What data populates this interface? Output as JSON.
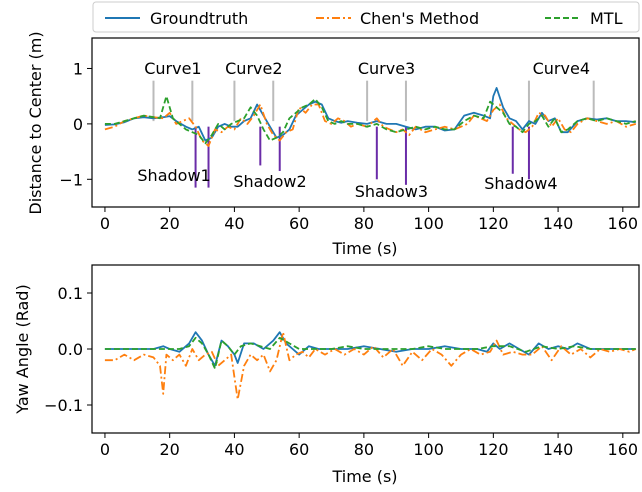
{
  "chart_data": [
    {
      "type": "line",
      "xlabel": "Time (s)",
      "ylabel": "Distance to Center (m)",
      "xlim": [
        -4,
        165
      ],
      "ylim": [
        -1.5,
        1.55
      ],
      "xticks": [
        0,
        20,
        40,
        60,
        80,
        100,
        120,
        140,
        160
      ],
      "yticks": [
        -1,
        0,
        1
      ],
      "grid": false,
      "legend_position": "top (above plot)",
      "series": [
        {
          "name": "Groundtruth",
          "color": "#1f77b4",
          "style": "solid",
          "x": [
            0,
            3,
            6,
            9,
            12,
            15,
            18,
            20,
            22,
            25,
            27,
            29,
            31,
            33,
            35,
            37,
            39,
            41,
            43,
            45,
            47,
            49,
            51,
            53,
            55,
            57,
            59,
            61,
            63,
            65,
            67,
            69,
            71,
            73,
            75,
            78,
            81,
            84,
            87,
            90,
            93,
            96,
            99,
            102,
            105,
            108,
            111,
            114,
            117,
            119,
            120,
            121,
            123,
            125,
            127,
            129,
            131,
            133,
            135,
            137,
            139,
            141,
            143,
            146,
            149,
            152,
            155,
            158,
            161,
            164
          ],
          "y": [
            -0.02,
            -0.01,
            0.03,
            0.1,
            0.12,
            0.1,
            0.12,
            0.14,
            0.05,
            -0.05,
            -0.1,
            -0.05,
            -0.3,
            -0.25,
            -0.05,
            0.0,
            -0.05,
            -0.05,
            0.05,
            0.1,
            0.35,
            0.15,
            -0.05,
            -0.25,
            -0.2,
            -0.1,
            0.15,
            0.25,
            0.35,
            0.4,
            0.35,
            0.1,
            0.05,
            0.02,
            0.05,
            0.02,
            0.0,
            0.05,
            0.0,
            0.0,
            -0.05,
            -0.1,
            -0.05,
            -0.05,
            -0.12,
            -0.1,
            0.15,
            0.2,
            0.15,
            0.1,
            0.5,
            0.65,
            0.3,
            0.1,
            0.05,
            -0.1,
            0.05,
            0.0,
            0.2,
            0.05,
            0.1,
            -0.15,
            -0.15,
            0.05,
            0.1,
            0.08,
            0.1,
            0.05,
            0.05,
            0.03
          ]
        },
        {
          "name": "Chen's Method",
          "color": "#ff7f0e",
          "style": "dashdot",
          "x": [
            0,
            3,
            6,
            9,
            12,
            15,
            18,
            20,
            22,
            24,
            26,
            28,
            30,
            32,
            34,
            36,
            38,
            40,
            42,
            44,
            46,
            48,
            50,
            52,
            54,
            56,
            58,
            60,
            62,
            64,
            66,
            68,
            70,
            72,
            74,
            76,
            78,
            81,
            84,
            86,
            88,
            90,
            92,
            94,
            96,
            99,
            102,
            105,
            108,
            110,
            112,
            114,
            116,
            118,
            120,
            122,
            124,
            126,
            128,
            130,
            132,
            134,
            136,
            138,
            140,
            142,
            144,
            146,
            149,
            152,
            155,
            158,
            161,
            164
          ],
          "y": [
            -0.1,
            -0.05,
            0.05,
            0.1,
            0.15,
            0.12,
            0.1,
            0.2,
            0.0,
            0.05,
            0.1,
            -0.05,
            -0.3,
            -0.4,
            -0.1,
            -0.15,
            -0.05,
            -0.1,
            0.1,
            0.0,
            0.15,
            0.35,
            0.0,
            -0.2,
            -0.3,
            -0.15,
            -0.1,
            0.3,
            0.2,
            0.35,
            0.35,
            0.05,
            0.0,
            0.1,
            0.05,
            -0.05,
            0.0,
            -0.05,
            0.1,
            -0.05,
            -0.1,
            -0.15,
            -0.1,
            -0.2,
            -0.05,
            -0.15,
            -0.1,
            -0.05,
            -0.1,
            -0.05,
            0.0,
            0.15,
            0.1,
            0.05,
            0.25,
            0.35,
            0.1,
            0.0,
            -0.1,
            -0.15,
            -0.05,
            0.2,
            0.15,
            -0.05,
            0.1,
            -0.1,
            -0.15,
            0.0,
            0.1,
            0.05,
            0.0,
            0.05,
            -0.05,
            0.0
          ]
        },
        {
          "name": "MTL",
          "color": "#2ca02c",
          "style": "dashed",
          "x": [
            0,
            3,
            6,
            9,
            12,
            15,
            17,
            19,
            21,
            23,
            25,
            27,
            29,
            31,
            33,
            35,
            37,
            39,
            41,
            43,
            45,
            47,
            49,
            51,
            53,
            55,
            57,
            59,
            61,
            63,
            65,
            67,
            69,
            71,
            73,
            75,
            78,
            81,
            84,
            87,
            90,
            93,
            96,
            99,
            102,
            105,
            108,
            111,
            114,
            117,
            119,
            121,
            123,
            125,
            127,
            129,
            131,
            133,
            135,
            137,
            139,
            141,
            143,
            146,
            149,
            152,
            155,
            158,
            161,
            164
          ],
          "y": [
            0.0,
            0.0,
            0.05,
            0.1,
            0.15,
            0.12,
            0.1,
            0.5,
            0.1,
            0.0,
            -0.1,
            -0.15,
            -0.2,
            -0.35,
            -0.2,
            0.0,
            -0.1,
            0.0,
            0.05,
            0.1,
            0.3,
            0.15,
            -0.1,
            -0.3,
            -0.25,
            -0.15,
            0.1,
            0.2,
            0.3,
            0.35,
            0.45,
            0.3,
            0.05,
            0.0,
            0.05,
            0.0,
            0.0,
            -0.05,
            0.0,
            -0.1,
            -0.15,
            -0.1,
            -0.05,
            -0.1,
            -0.05,
            -0.1,
            -0.1,
            0.05,
            0.15,
            0.1,
            0.4,
            0.3,
            0.2,
            0.0,
            -0.05,
            -0.15,
            0.0,
            0.05,
            0.15,
            -0.05,
            0.1,
            -0.15,
            -0.1,
            0.05,
            0.1,
            0.05,
            0.1,
            0.05,
            0.0,
            0.05
          ]
        }
      ],
      "annotations": {
        "curves": [
          {
            "label": "Curve1",
            "lines": [
              15,
              27
            ]
          },
          {
            "label": "Curve2",
            "lines": [
              40,
              52
            ]
          },
          {
            "label": "Curve3",
            "lines": [
              81,
              93
            ]
          },
          {
            "label": "Curve4",
            "lines": [
              131,
              151
            ]
          }
        ],
        "shadows": [
          {
            "label": "Shadow1",
            "lines": [
              28,
              32
            ]
          },
          {
            "label": "Shadow2",
            "lines": [
              48,
              54
            ]
          },
          {
            "label": "Shadow3",
            "lines": [
              84,
              93
            ]
          },
          {
            "label": "Shadow4",
            "lines": [
              126,
              131
            ]
          }
        ]
      }
    },
    {
      "type": "line",
      "xlabel": "Time (s)",
      "ylabel": "Yaw Angle (Rad)",
      "xlim": [
        -4,
        165
      ],
      "ylim": [
        -0.15,
        0.15
      ],
      "xticks": [
        0,
        20,
        40,
        60,
        80,
        100,
        120,
        140,
        160
      ],
      "yticks": [
        -0.1,
        0.0,
        0.1
      ],
      "ytick_labels": [
        "−0.1",
        "0.0",
        "0.1"
      ],
      "grid": false,
      "series": [
        {
          "name": "Groundtruth",
          "color": "#1f77b4",
          "style": "solid",
          "x": [
            0,
            5,
            10,
            15,
            18,
            20,
            23,
            26,
            28,
            30,
            32,
            34,
            36,
            38,
            40,
            41,
            43,
            46,
            49,
            52,
            54,
            56,
            58,
            60,
            63,
            66,
            70,
            75,
            80,
            85,
            90,
            95,
            100,
            105,
            110,
            115,
            118,
            120,
            122,
            125,
            128,
            131,
            134,
            137,
            140,
            143,
            146,
            150,
            155,
            160,
            164
          ],
          "y": [
            0.0,
            0.0,
            0.0,
            0.0,
            0.005,
            0.0,
            -0.005,
            0.01,
            0.03,
            0.015,
            -0.01,
            -0.03,
            0.015,
            0.005,
            -0.01,
            -0.025,
            0.01,
            0.01,
            0.0,
            0.015,
            0.03,
            0.01,
            0.0,
            -0.01,
            0.005,
            0.0,
            0.0,
            0.0,
            0.005,
            0.0,
            -0.005,
            0.0,
            0.0,
            0.005,
            0.0,
            0.0,
            -0.005,
            0.01,
            0.0,
            0.01,
            0.0,
            -0.01,
            0.01,
            0.0,
            0.005,
            0.0,
            0.01,
            0.0,
            0.0,
            0.0,
            0.0
          ]
        },
        {
          "name": "Chen's Method",
          "color": "#ff7f0e",
          "style": "dashdot",
          "x": [
            0,
            3,
            6,
            9,
            12,
            15,
            17,
            18,
            19,
            21,
            23,
            25,
            27,
            29,
            31,
            33,
            35,
            37,
            39,
            40,
            41,
            43,
            45,
            47,
            49,
            51,
            53,
            55,
            57,
            59,
            61,
            63,
            65,
            68,
            71,
            74,
            77,
            80,
            83,
            86,
            89,
            92,
            95,
            98,
            101,
            104,
            107,
            110,
            113,
            116,
            119,
            121,
            123,
            126,
            129,
            132,
            135,
            138,
            141,
            144,
            147,
            150,
            153,
            156,
            159,
            162,
            164
          ],
          "y": [
            -0.02,
            -0.02,
            -0.01,
            -0.02,
            -0.01,
            -0.015,
            -0.03,
            -0.08,
            -0.01,
            -0.02,
            -0.01,
            -0.03,
            0.0,
            -0.02,
            -0.01,
            -0.005,
            -0.03,
            -0.02,
            -0.01,
            -0.05,
            -0.09,
            -0.03,
            -0.01,
            -0.02,
            -0.01,
            -0.04,
            -0.02,
            0.03,
            -0.02,
            -0.01,
            -0.005,
            -0.015,
            0.0,
            -0.01,
            0.0,
            -0.01,
            0.0,
            -0.01,
            0.005,
            -0.015,
            0.0,
            -0.03,
            -0.005,
            -0.02,
            0.0,
            -0.01,
            -0.03,
            -0.01,
            0.0,
            -0.01,
            -0.005,
            0.015,
            -0.01,
            -0.005,
            -0.01,
            -0.01,
            0.005,
            -0.02,
            0.005,
            -0.01,
            0.0,
            -0.015,
            0.0,
            -0.005,
            0.0,
            -0.005,
            0.0
          ]
        },
        {
          "name": "MTL",
          "color": "#2ca02c",
          "style": "dashed",
          "x": [
            0,
            5,
            10,
            15,
            18,
            20,
            23,
            26,
            28,
            30,
            32,
            34,
            36,
            38,
            40,
            42,
            45,
            48,
            51,
            54,
            57,
            60,
            65,
            70,
            75,
            80,
            85,
            90,
            95,
            100,
            105,
            110,
            115,
            120,
            125,
            130,
            135,
            140,
            145,
            150,
            155,
            160,
            164
          ],
          "y": [
            0.0,
            0.0,
            0.0,
            0.0,
            0.0,
            0.0,
            0.0,
            0.005,
            0.02,
            0.01,
            -0.01,
            -0.035,
            0.015,
            0.005,
            -0.01,
            0.005,
            0.01,
            0.005,
            0.0,
            0.02,
            0.01,
            0.0,
            0.0,
            0.0,
            0.005,
            0.0,
            0.0,
            0.0,
            0.0,
            0.005,
            0.0,
            0.0,
            0.0,
            0.005,
            0.005,
            -0.005,
            0.005,
            0.0,
            0.005,
            0.0,
            0.0,
            0.0,
            0.0
          ]
        }
      ]
    }
  ]
}
